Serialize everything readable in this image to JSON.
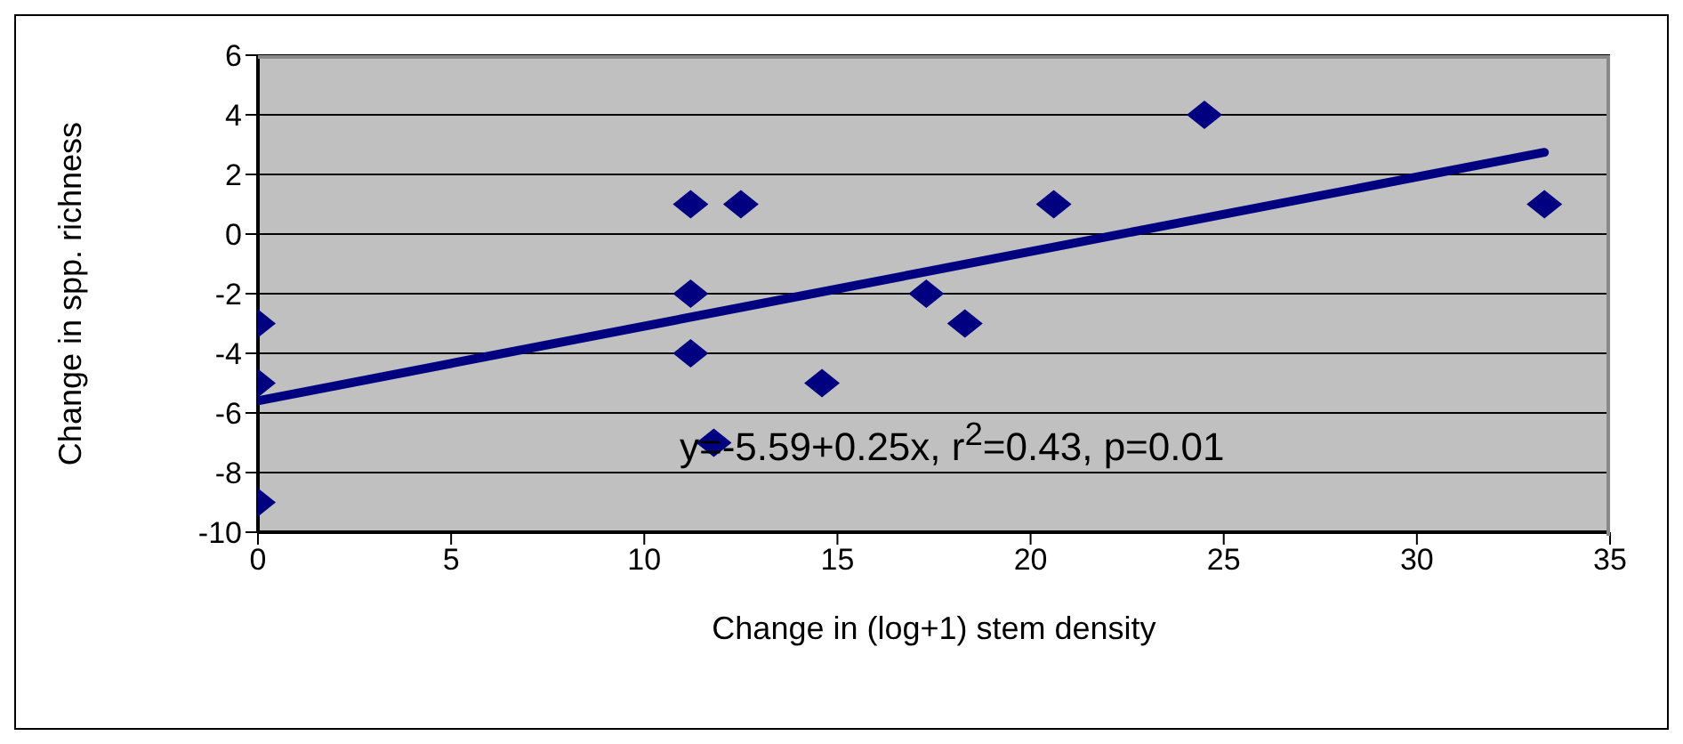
{
  "chart_data": {
    "type": "scatter",
    "xlabel": "Change in (log+1) stem density",
    "ylabel": "Change in spp. richness",
    "xlim": [
      0,
      35
    ],
    "xticks": [
      0,
      5,
      10,
      15,
      20,
      25,
      30,
      35
    ],
    "ylim": [
      -10,
      6
    ],
    "yticks": [
      -10,
      -8,
      -6,
      -4,
      -2,
      0,
      2,
      4,
      6
    ],
    "grid": "y",
    "marker": "diamond",
    "annotations": [
      "y=-5.59+0.25x, r$^{2}$=0.43, p=0.01"
    ],
    "series": [
      {
        "color": "#000080",
        "x": [
          0,
          0,
          0,
          11.2,
          12.5,
          11.2,
          11.2,
          11.8,
          14.6,
          17.3,
          18.3,
          20.6,
          24.5,
          33.3
        ],
        "values": [
          -3,
          -5,
          -9,
          1,
          1,
          -2,
          -4,
          -7,
          -5,
          -2,
          -3,
          1,
          4,
          1
        ]
      },
      {
        "type": "line",
        "marker": "none",
        "color": "#000080",
        "x": [
          0,
          33.3
        ],
        "values": [
          -5.59,
          2.74
        ]
      }
    ]
  }
}
